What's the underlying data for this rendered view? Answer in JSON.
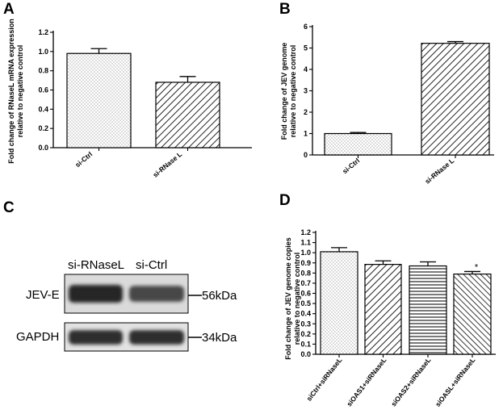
{
  "panels": {
    "A": "A",
    "B": "B",
    "C": "C",
    "D": "D"
  },
  "chart_data": [
    {
      "panel": "A",
      "type": "bar",
      "categories": [
        "si-Ctrl",
        "si-RNase L"
      ],
      "values": [
        0.98,
        0.68
      ],
      "errors": [
        0.05,
        0.06
      ],
      "patterns": [
        "dots",
        "diag"
      ],
      "ylabel_lines": [
        "Fold change of RNaseL mRNA expression",
        "relative to negative control"
      ],
      "yticks": [
        0.0,
        0.2,
        0.4,
        0.6,
        0.8,
        1.0,
        1.2
      ],
      "ylim": [
        0,
        1.2
      ]
    },
    {
      "panel": "B",
      "type": "bar",
      "categories": [
        "si-Ctrl",
        "si-RNase L"
      ],
      "values": [
        1.0,
        5.22
      ],
      "errors": [
        0.05,
        0.08
      ],
      "patterns": [
        "dots",
        "diag"
      ],
      "ylabel_lines": [
        "Fold change of JEV genome",
        "relative to negative control"
      ],
      "yticks": [
        0,
        1,
        2,
        3,
        4,
        5,
        6
      ],
      "ylim": [
        0,
        6
      ]
    },
    {
      "panel": "D",
      "type": "bar",
      "categories": [
        "siCtrl+siRNaseL",
        "siOAS1+siRNaseL",
        "siOAS2+siRNaseL",
        "siOASL+siRNaseL"
      ],
      "values": [
        1.01,
        0.885,
        0.87,
        0.79
      ],
      "errors": [
        0.04,
        0.035,
        0.04,
        0.025
      ],
      "patterns": [
        "dots",
        "diag",
        "hlines",
        "diag2"
      ],
      "annotations": [
        "",
        "",
        "",
        "*"
      ],
      "ylabel_lines": [
        "Fold change of JEV genome copies",
        "relative to negative control"
      ],
      "yticks": [
        0.0,
        0.1,
        0.2,
        0.3,
        0.4,
        0.5,
        0.6,
        0.7,
        0.8,
        0.9,
        1.0,
        1.1,
        1.2
      ],
      "ylim": [
        0,
        1.2
      ]
    }
  ],
  "blot": {
    "lanes": [
      "si-RNaseL",
      "si-Ctrl"
    ],
    "bands": [
      {
        "label": "JEV-E",
        "marker": "56kDa",
        "intensity": [
          1.0,
          0.75
        ]
      },
      {
        "label": "GAPDH",
        "marker": "34kDa",
        "intensity": [
          0.95,
          0.95
        ]
      }
    ]
  }
}
